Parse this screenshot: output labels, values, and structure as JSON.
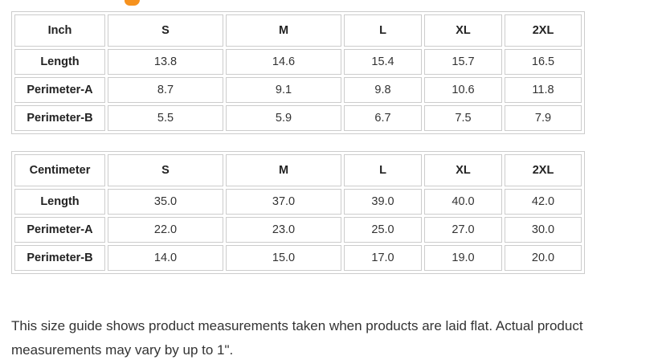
{
  "page": {
    "background_color": "#ffffff",
    "accent_color": "#f6921e"
  },
  "tables": [
    {
      "unit": "Inch",
      "columns": [
        "S",
        "M",
        "L",
        "XL",
        "2XL"
      ],
      "rows": [
        {
          "label": "Length",
          "values": [
            "13.8",
            "14.6",
            "15.4",
            "15.7",
            "16.5"
          ]
        },
        {
          "label": "Perimeter-A",
          "values": [
            "8.7",
            "9.1",
            "9.8",
            "10.6",
            "11.8"
          ]
        },
        {
          "label": "Perimeter-B",
          "values": [
            "5.5",
            "5.9",
            "6.7",
            "7.5",
            "7.9"
          ]
        }
      ]
    },
    {
      "unit": "Centimeter",
      "columns": [
        "S",
        "M",
        "L",
        "XL",
        "2XL"
      ],
      "rows": [
        {
          "label": "Length",
          "values": [
            "35.0",
            "37.0",
            "39.0",
            "40.0",
            "42.0"
          ]
        },
        {
          "label": "Perimeter-A",
          "values": [
            "22.0",
            "23.0",
            "25.0",
            "27.0",
            "30.0"
          ]
        },
        {
          "label": "Perimeter-B",
          "values": [
            "14.0",
            "15.0",
            "17.0",
            "19.0",
            "20.0"
          ]
        }
      ]
    }
  ],
  "note": "This size guide shows product measurements taken when products are laid flat. Actual product measurements may vary by up to 1\"."
}
